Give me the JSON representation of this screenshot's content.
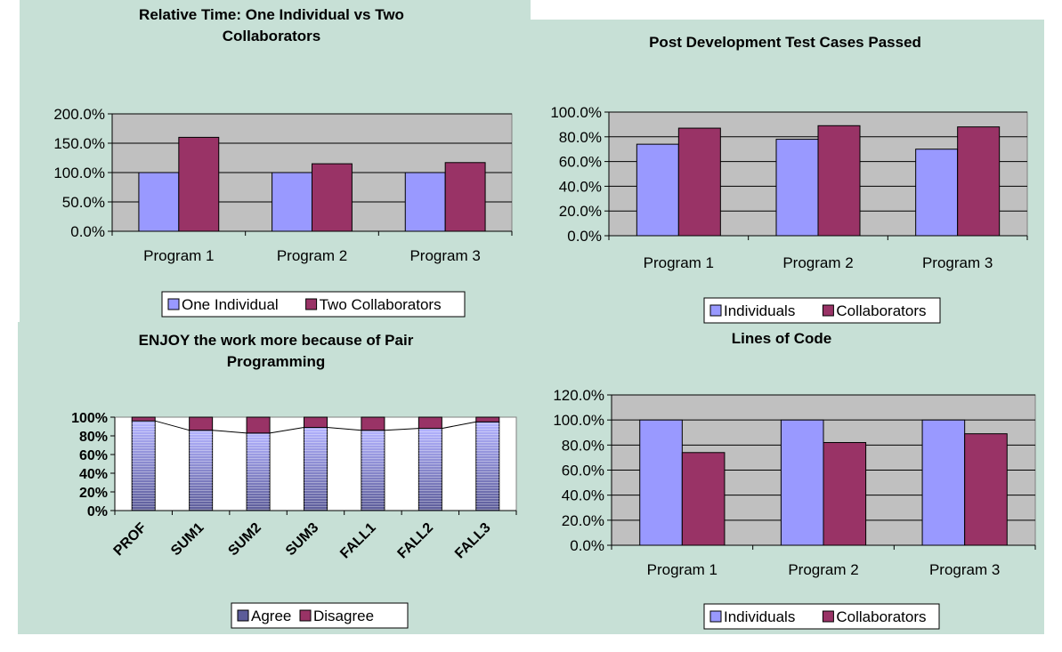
{
  "colors": {
    "panel_bg": "#c7e0d6",
    "plot_bg": "#c0c0c0",
    "plot_white": "#ffffff",
    "series_a": "#9999ff",
    "series_b": "#993366",
    "agree_dark": "#5c5c99",
    "agree_light": "#b3b3ff"
  },
  "chart_data": [
    {
      "type": "bar",
      "title_lines": [
        "Relative Time:  One Individual vs Two",
        "Collaborators"
      ],
      "categories": [
        "Program 1",
        "Program 2",
        "Program 3"
      ],
      "series": [
        {
          "name": "One Individual",
          "values": [
            100,
            100,
            100
          ]
        },
        {
          "name": "Two Collaborators",
          "values": [
            160,
            115,
            117
          ]
        }
      ],
      "y_ticks": [
        "0.0%",
        "50.0%",
        "100.0%",
        "150.0%",
        "200.0%"
      ],
      "ylim": [
        0,
        200
      ],
      "y_step": 50,
      "grid": true,
      "legend": "bottom"
    },
    {
      "type": "bar",
      "title_lines": [
        "Post Development Test Cases Passed"
      ],
      "categories": [
        "Program 1",
        "Program 2",
        "Program 3"
      ],
      "series": [
        {
          "name": "Individuals",
          "values": [
            74,
            78,
            70
          ]
        },
        {
          "name": "Collaborators",
          "values": [
            87,
            89,
            88
          ]
        }
      ],
      "y_ticks": [
        "0.0%",
        "20.0%",
        "40.0%",
        "60.0%",
        "80.0%",
        "100.0%"
      ],
      "ylim": [
        0,
        100
      ],
      "y_step": 20,
      "grid": true,
      "legend": "bottom"
    },
    {
      "type": "bar",
      "stacked": true,
      "title_lines": [
        "ENJOY the work more because of Pair",
        "Programming"
      ],
      "categories": [
        "PROF",
        "SUM1",
        "SUM2",
        "SUM3",
        "FALL1",
        "FALL2",
        "FALL3"
      ],
      "series": [
        {
          "name": "Agree",
          "values": [
            96,
            86,
            83,
            89,
            86,
            88,
            95
          ]
        },
        {
          "name": "Disagree",
          "values": [
            4,
            14,
            17,
            11,
            14,
            12,
            5
          ]
        }
      ],
      "y_ticks": [
        "0%",
        "20%",
        "40%",
        "60%",
        "80%",
        "100%"
      ],
      "ylim": [
        0,
        100
      ],
      "y_step": 20,
      "grid": false,
      "legend": "bottom"
    },
    {
      "type": "bar",
      "title_lines": [
        "Lines of Code"
      ],
      "categories": [
        "Program 1",
        "Program 2",
        "Program 3"
      ],
      "series": [
        {
          "name": "Individuals",
          "values": [
            100,
            100,
            100
          ]
        },
        {
          "name": "Collaborators",
          "values": [
            74,
            82,
            89
          ]
        }
      ],
      "y_ticks": [
        "0.0%",
        "20.0%",
        "40.0%",
        "60.0%",
        "80.0%",
        "100.0%",
        "120.0%"
      ],
      "ylim": [
        0,
        120
      ],
      "y_step": 20,
      "grid": true,
      "legend": "bottom"
    }
  ]
}
